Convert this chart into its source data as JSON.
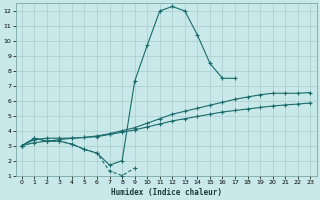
{
  "bg_color": "#c8e8ea",
  "grid_color": "#aaccce",
  "line_color": "#1a6b6b",
  "xlim": [
    -0.5,
    23.5
  ],
  "ylim": [
    1,
    12.5
  ],
  "xticks": [
    0,
    1,
    2,
    3,
    4,
    5,
    6,
    7,
    8,
    9,
    10,
    11,
    12,
    13,
    14,
    15,
    16,
    17,
    18,
    19,
    20,
    21,
    22,
    23
  ],
  "yticks": [
    1,
    2,
    3,
    4,
    5,
    6,
    7,
    8,
    9,
    10,
    11,
    12
  ],
  "xlabel": "Humidex (Indice chaleur)",
  "spike_x": [
    0,
    1,
    2,
    3,
    4,
    5,
    6,
    7,
    8,
    9,
    10,
    11,
    12,
    13,
    14,
    15,
    16,
    17
  ],
  "spike_y": [
    3.0,
    3.5,
    3.3,
    3.3,
    3.1,
    2.75,
    2.5,
    1.7,
    2.0,
    7.3,
    9.7,
    12.0,
    12.3,
    12.0,
    10.4,
    8.5,
    7.5,
    7.5
  ],
  "dip_x": [
    0,
    1,
    2,
    3,
    4,
    5,
    6,
    7,
    8,
    9
  ],
  "dip_y": [
    3.0,
    3.5,
    3.3,
    3.3,
    3.1,
    2.75,
    2.5,
    1.3,
    1.0,
    1.5
  ],
  "upper_x": [
    0,
    1,
    2,
    3,
    4,
    5,
    6,
    7,
    8,
    9,
    10,
    11,
    12,
    13,
    14,
    15,
    16,
    17,
    18,
    19,
    20,
    21,
    22,
    23
  ],
  "upper_y": [
    3.0,
    3.4,
    3.5,
    3.5,
    3.5,
    3.55,
    3.65,
    3.8,
    4.0,
    4.2,
    4.5,
    4.8,
    5.1,
    5.3,
    5.5,
    5.7,
    5.9,
    6.1,
    6.25,
    6.4,
    6.5,
    6.5,
    6.5,
    6.55
  ],
  "lower_x": [
    0,
    1,
    2,
    3,
    4,
    5,
    6,
    7,
    8,
    9,
    10,
    11,
    12,
    13,
    14,
    15,
    16,
    17,
    18,
    19,
    20,
    21,
    22,
    23
  ],
  "lower_y": [
    3.0,
    3.2,
    3.3,
    3.4,
    3.5,
    3.55,
    3.6,
    3.75,
    3.9,
    4.05,
    4.25,
    4.45,
    4.65,
    4.8,
    4.95,
    5.1,
    5.25,
    5.35,
    5.45,
    5.55,
    5.65,
    5.72,
    5.78,
    5.85
  ]
}
